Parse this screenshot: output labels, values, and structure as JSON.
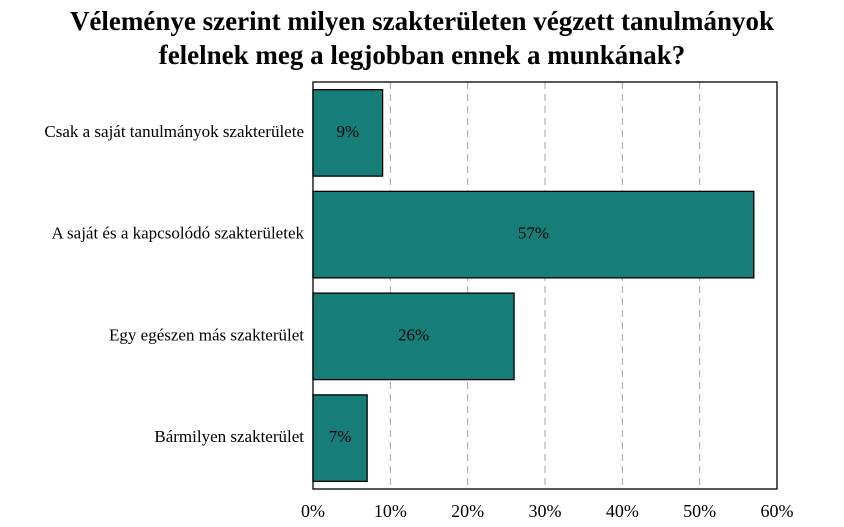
{
  "title_lines": [
    "Véleménye szerint milyen szakterületen végzett tanulmányok",
    "felelnek meg a legjobban ennek a munkának?"
  ],
  "colors": {
    "bar": "#177D79",
    "grid": "#a0a0a0",
    "frame": "#000000"
  },
  "chart_data": {
    "type": "bar",
    "orientation": "horizontal",
    "title": "Véleménye szerint milyen szakterületen végzett tanulmányok felelnek meg a legjobban ennek a munkának?",
    "categories": [
      "Csak a saját tanulmányok szakterülete",
      "A saját és a kapcsolódó szakterületek",
      "Egy egészen más szakterület",
      "Bármilyen szakterület"
    ],
    "values": [
      9,
      57,
      26,
      7
    ],
    "value_labels": [
      "9%",
      "57%",
      "26%",
      "7%"
    ],
    "xlim": [
      0,
      60
    ],
    "xticks": [
      0,
      10,
      20,
      30,
      40,
      50,
      60
    ],
    "xtick_labels": [
      "0%",
      "10%",
      "20%",
      "30%",
      "40%",
      "50%",
      "60%"
    ],
    "grid": "vertical dashed",
    "legend": "none",
    "xlabel": "",
    "ylabel": ""
  }
}
